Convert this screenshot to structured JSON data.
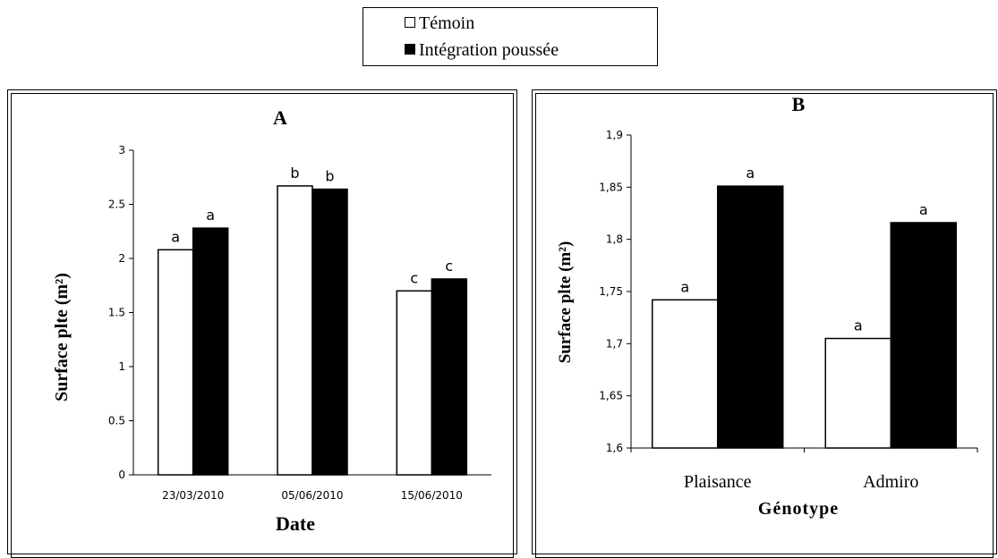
{
  "legend": {
    "items": [
      {
        "label": "Témoin",
        "color": "#ffffff"
      },
      {
        "label": "Intégration poussée",
        "color": "#000000"
      }
    ]
  },
  "chart_data": [
    {
      "type": "bar",
      "title": "A",
      "xlabel": "Date",
      "ylabel": "Surface plte (m²)",
      "categories": [
        "23/03/2010",
        "05/06/2010",
        "15/06/2010"
      ],
      "ylim": [
        0,
        3
      ],
      "yticks": [
        "0",
        "0.5",
        "1",
        "1.5",
        "2",
        "2.5",
        "3"
      ],
      "series": [
        {
          "name": "Témoin",
          "color": "#ffffff",
          "values": [
            2.08,
            2.67,
            1.7
          ],
          "labels": [
            "a",
            "b",
            "c"
          ]
        },
        {
          "name": "Intégration poussée",
          "color": "#000000",
          "values": [
            2.28,
            2.64,
            1.81
          ],
          "labels": [
            "a",
            "b",
            "c"
          ]
        }
      ]
    },
    {
      "type": "bar",
      "title": "B",
      "xlabel": "Génotype",
      "ylabel": "Surface plte (m²)",
      "categories": [
        "Plaisance",
        "Admiro"
      ],
      "ylim": [
        1.6,
        1.9
      ],
      "yticks": [
        "1,6",
        "1,65",
        "1,7",
        "1,75",
        "1,8",
        "1,85",
        "1,9"
      ],
      "series": [
        {
          "name": "Témoin",
          "color": "#ffffff",
          "values": [
            1.742,
            1.705
          ],
          "labels": [
            "a",
            "a"
          ]
        },
        {
          "name": "Intégration poussée",
          "color": "#000000",
          "values": [
            1.851,
            1.816
          ],
          "labels": [
            "a",
            "a"
          ]
        }
      ]
    }
  ]
}
